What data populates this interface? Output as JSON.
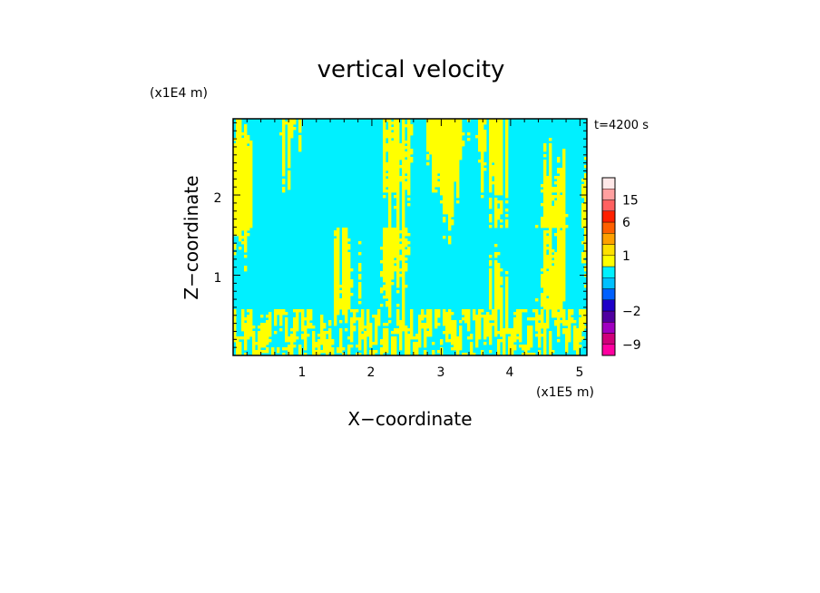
{
  "chart_data": {
    "type": "heatmap",
    "title": "vertical velocity",
    "xlabel": "X−coordinate",
    "ylabel": "Z−coordinate",
    "x_unit": "(x1E5 m)",
    "y_unit": "(x1E4 m)",
    "xlim": [
      0.0,
      5.1
    ],
    "ylim": [
      0.0,
      2.95
    ],
    "x_ticks": [
      1,
      2,
      3,
      4,
      5
    ],
    "x_tick_labels": [
      "1",
      "2",
      "3",
      "4",
      "5"
    ],
    "y_ticks": [
      1,
      2
    ],
    "y_tick_labels": [
      "1",
      "2"
    ],
    "time_label": "t=4200 s",
    "field": {
      "dominant_value_range": [
        -2,
        1
      ],
      "background_color": "#00f0ff",
      "updraft_color": "#ffff00",
      "pattern": "narrow vertical plumes, dense near surface, broad patches aloft"
    },
    "colorbar": {
      "levels": [
        -12,
        -9,
        -6,
        -4,
        -2,
        -1,
        -0.5,
        0,
        0.5,
        1,
        2,
        4,
        6,
        10,
        15,
        20,
        25
      ],
      "colors": [
        "#ff00a0",
        "#d0007a",
        "#a000c0",
        "#5000a0",
        "#1e00c8",
        "#0060ff",
        "#00c0ff",
        "#00f0ff",
        "#ffff00",
        "#ffe000",
        "#ffa000",
        "#ff6000",
        "#ff2000",
        "#ff6060",
        "#ffa0a0",
        "#ffe8e8"
      ],
      "labels": [
        "15",
        "6",
        "1",
        "−2",
        "−9"
      ],
      "label_values": [
        15,
        6,
        1,
        -2,
        -9
      ]
    }
  }
}
